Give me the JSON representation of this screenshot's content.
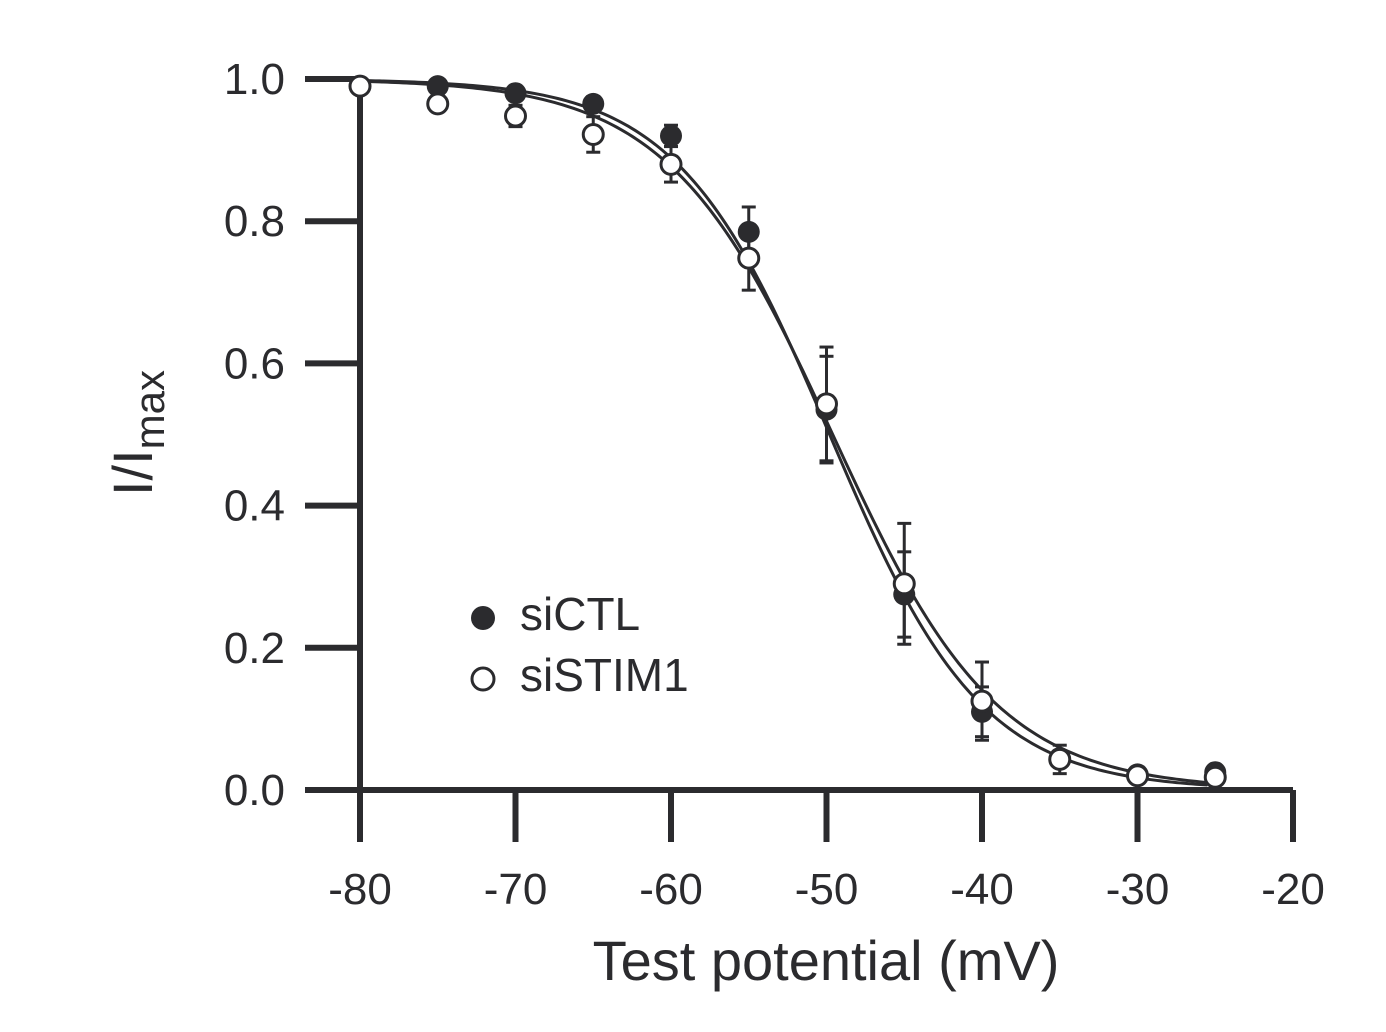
{
  "chart_data": {
    "type": "scatter",
    "title": "",
    "xlabel": "Test potential (mV)",
    "ylabel_main": "I/I",
    "ylabel_sub": "max",
    "xlim": [
      -80,
      -20
    ],
    "ylim": [
      0.0,
      1.0
    ],
    "x_ticks": [
      -80,
      -70,
      -60,
      -50,
      -40,
      -30,
      -20
    ],
    "x_tick_labels": [
      "-80",
      "-70",
      "-60",
      "-50",
      "-40",
      "-30",
      "-20"
    ],
    "y_ticks": [
      0.0,
      0.2,
      0.4,
      0.6,
      0.8,
      1.0
    ],
    "y_tick_labels": [
      "0.0",
      "0.2",
      "0.4",
      "0.6",
      "0.8",
      "1.0"
    ],
    "grid": false,
    "legend_position": "lower-left",
    "series": [
      {
        "name": "siCTL",
        "marker": "filled-circle",
        "color": "#2b2b2e",
        "x": [
          -80,
          -75,
          -70,
          -65,
          -60,
          -55,
          -50,
          -45,
          -40,
          -35,
          -30,
          -25
        ],
        "y": [
          0.99,
          0.99,
          0.98,
          0.965,
          0.92,
          0.785,
          0.535,
          0.275,
          0.11,
          0.045,
          0.022,
          0.025
        ],
        "err": [
          0.0,
          0.005,
          0.01,
          0.01,
          0.015,
          0.035,
          0.075,
          0.06,
          0.035,
          0.01,
          0.0,
          0.0
        ],
        "fit": {
          "v_half": -49.8,
          "slope": 4.9
        }
      },
      {
        "name": "siSTIM1",
        "marker": "open-circle",
        "color": "#2b2b2e",
        "x": [
          -80,
          -75,
          -70,
          -65,
          -60,
          -55,
          -50,
          -45,
          -40,
          -35,
          -30,
          -25
        ],
        "y": [
          0.99,
          0.965,
          0.948,
          0.922,
          0.88,
          0.748,
          0.543,
          0.29,
          0.125,
          0.043,
          0.02,
          0.018
        ],
        "err": [
          0.0,
          0.0,
          0.015,
          0.025,
          0.025,
          0.045,
          0.08,
          0.085,
          0.055,
          0.02,
          0.0,
          0.0
        ],
        "fit": {
          "v_half": -49.6,
          "slope": 5.3
        }
      }
    ]
  }
}
